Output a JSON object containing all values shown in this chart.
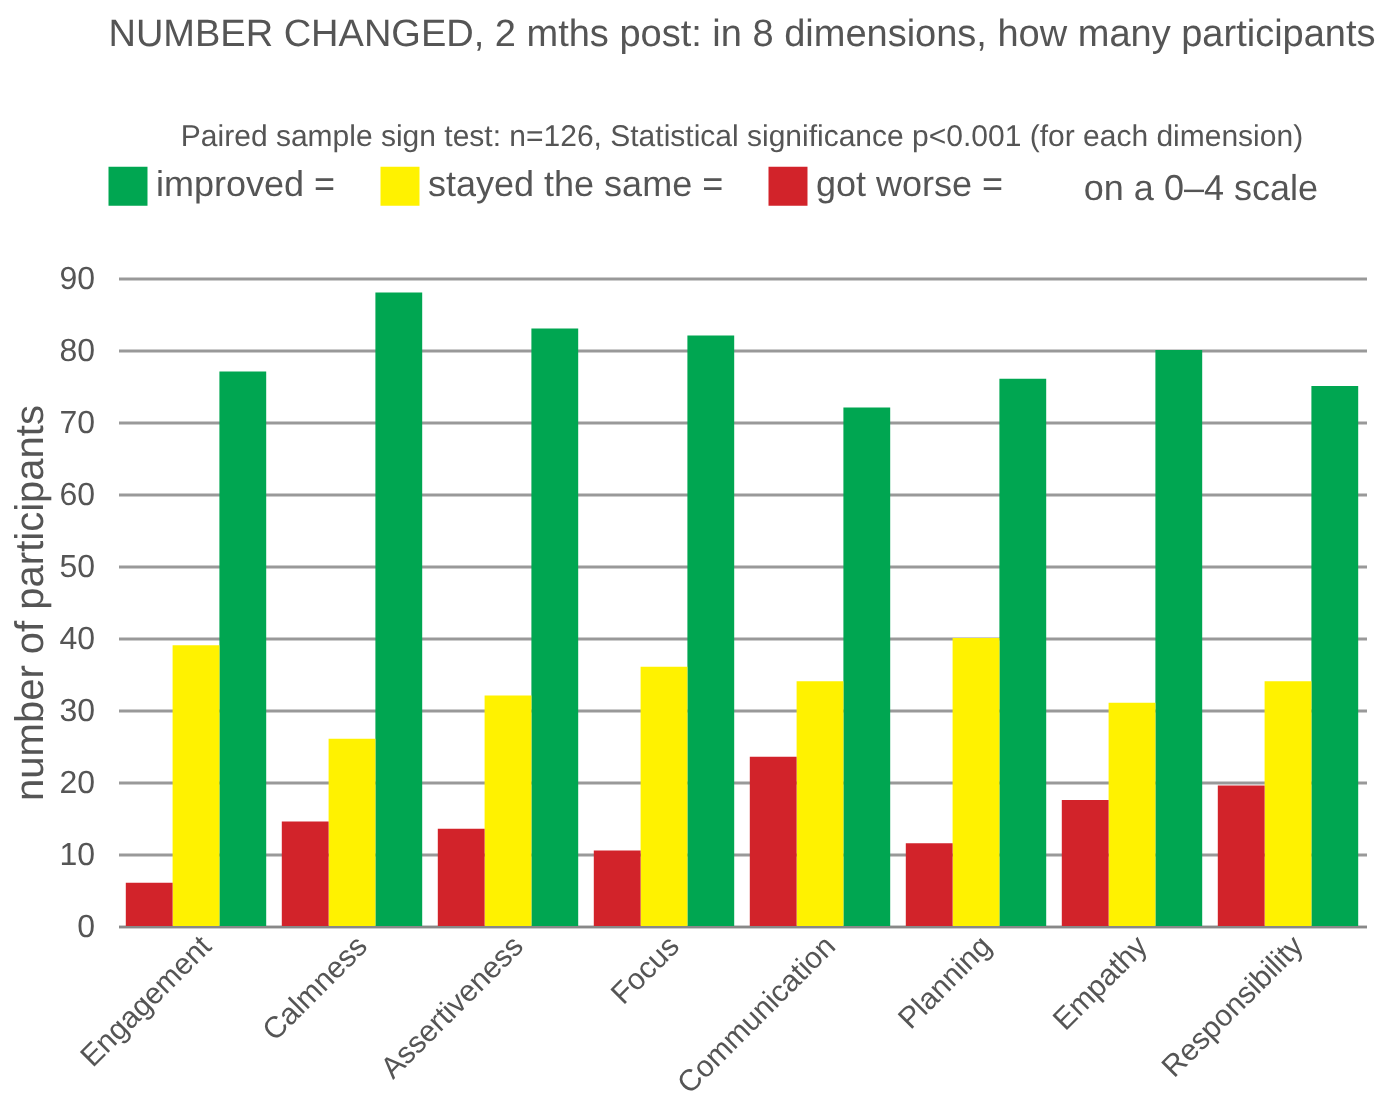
{
  "chart_data": {
    "type": "bar",
    "title": "NUMBER CHANGED, 2 mths post: in 8 dimensions, how many participants",
    "subtitle": "Paired sample sign test: n=126, Statistical significance p<0.001 (for each dimension)",
    "ylabel": "number of participants",
    "categories": [
      "Engagement",
      "Calmness",
      "Assertiveness",
      "Focus",
      "Communication",
      "Planning",
      "Empathy",
      "Responsibility"
    ],
    "series": [
      {
        "name": "improved =",
        "color": "#00a651",
        "values": [
          77,
          88,
          83,
          82,
          72,
          76,
          80,
          75
        ]
      },
      {
        "name": "stayed the same =",
        "color": "#fff200",
        "values": [
          39,
          26,
          32,
          36,
          34,
          40,
          31,
          34
        ]
      },
      {
        "name": "got worse =",
        "color": "#d2232a",
        "values": [
          6,
          14.5,
          13.5,
          10.5,
          23.5,
          11.5,
          17.5,
          19.5
        ]
      }
    ],
    "annotations": [
      "on a 0–4 scale"
    ],
    "ylim": [
      0,
      90
    ],
    "yticks": [
      0,
      10,
      20,
      30,
      40,
      50,
      60,
      70,
      80,
      90
    ],
    "grid": "y",
    "legend": "top"
  }
}
